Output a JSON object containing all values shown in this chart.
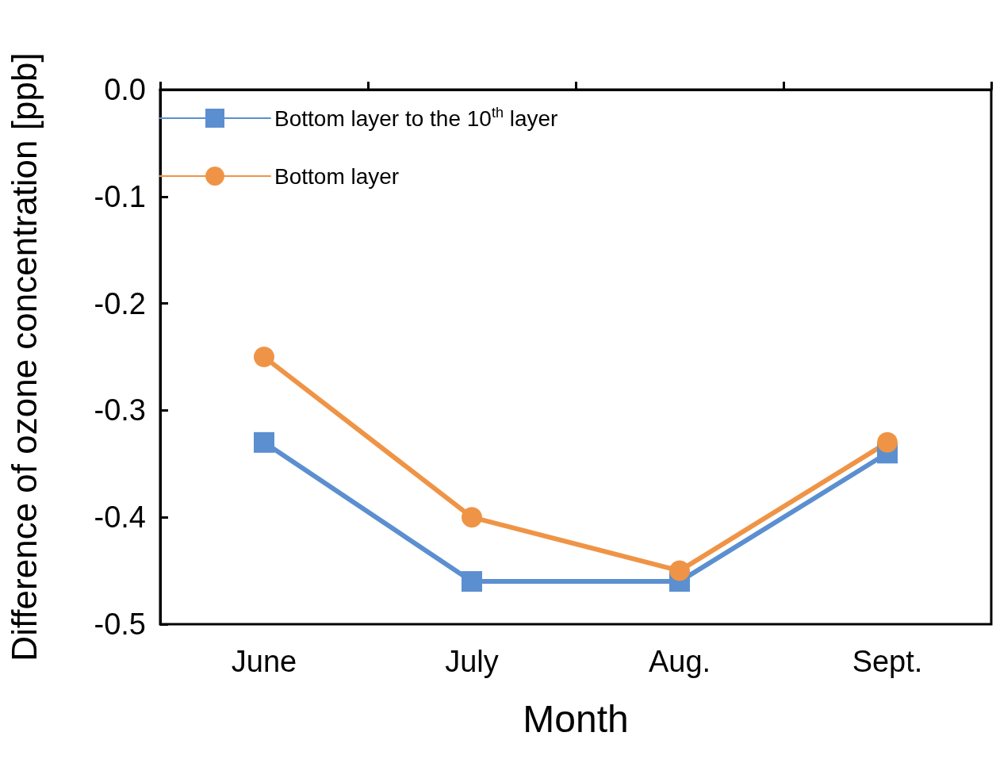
{
  "chart_data": {
    "type": "line",
    "xlabel": "Month",
    "ylabel": "Difference of ozone concentration [ppb]",
    "categories": [
      "June",
      "July",
      "Aug.",
      "Sept."
    ],
    "series": [
      {
        "name": "Bottom layer to the 10$^{th}$ layer",
        "color": "#5b8fd0",
        "marker": "square",
        "values": [
          -0.33,
          -0.46,
          -0.46,
          -0.34
        ]
      },
      {
        "name": "Bottom layer",
        "color": "#ef9446",
        "marker": "circle",
        "values": [
          -0.25,
          -0.4,
          -0.45,
          -0.33
        ]
      }
    ],
    "ylim": [
      -0.5,
      0
    ],
    "yticks": [
      {
        "value": -0.5,
        "label": "-0.5"
      },
      {
        "value": -0.4,
        "label": "-0.4"
      },
      {
        "value": -0.3,
        "label": "-0.3"
      },
      {
        "value": -0.2,
        "label": "-0.2"
      },
      {
        "value": -0.1,
        "label": "-0.1"
      },
      {
        "value": 0,
        "label": "0.0"
      }
    ],
    "grid": false,
    "legend": "top left",
    "line_style": "solid"
  }
}
